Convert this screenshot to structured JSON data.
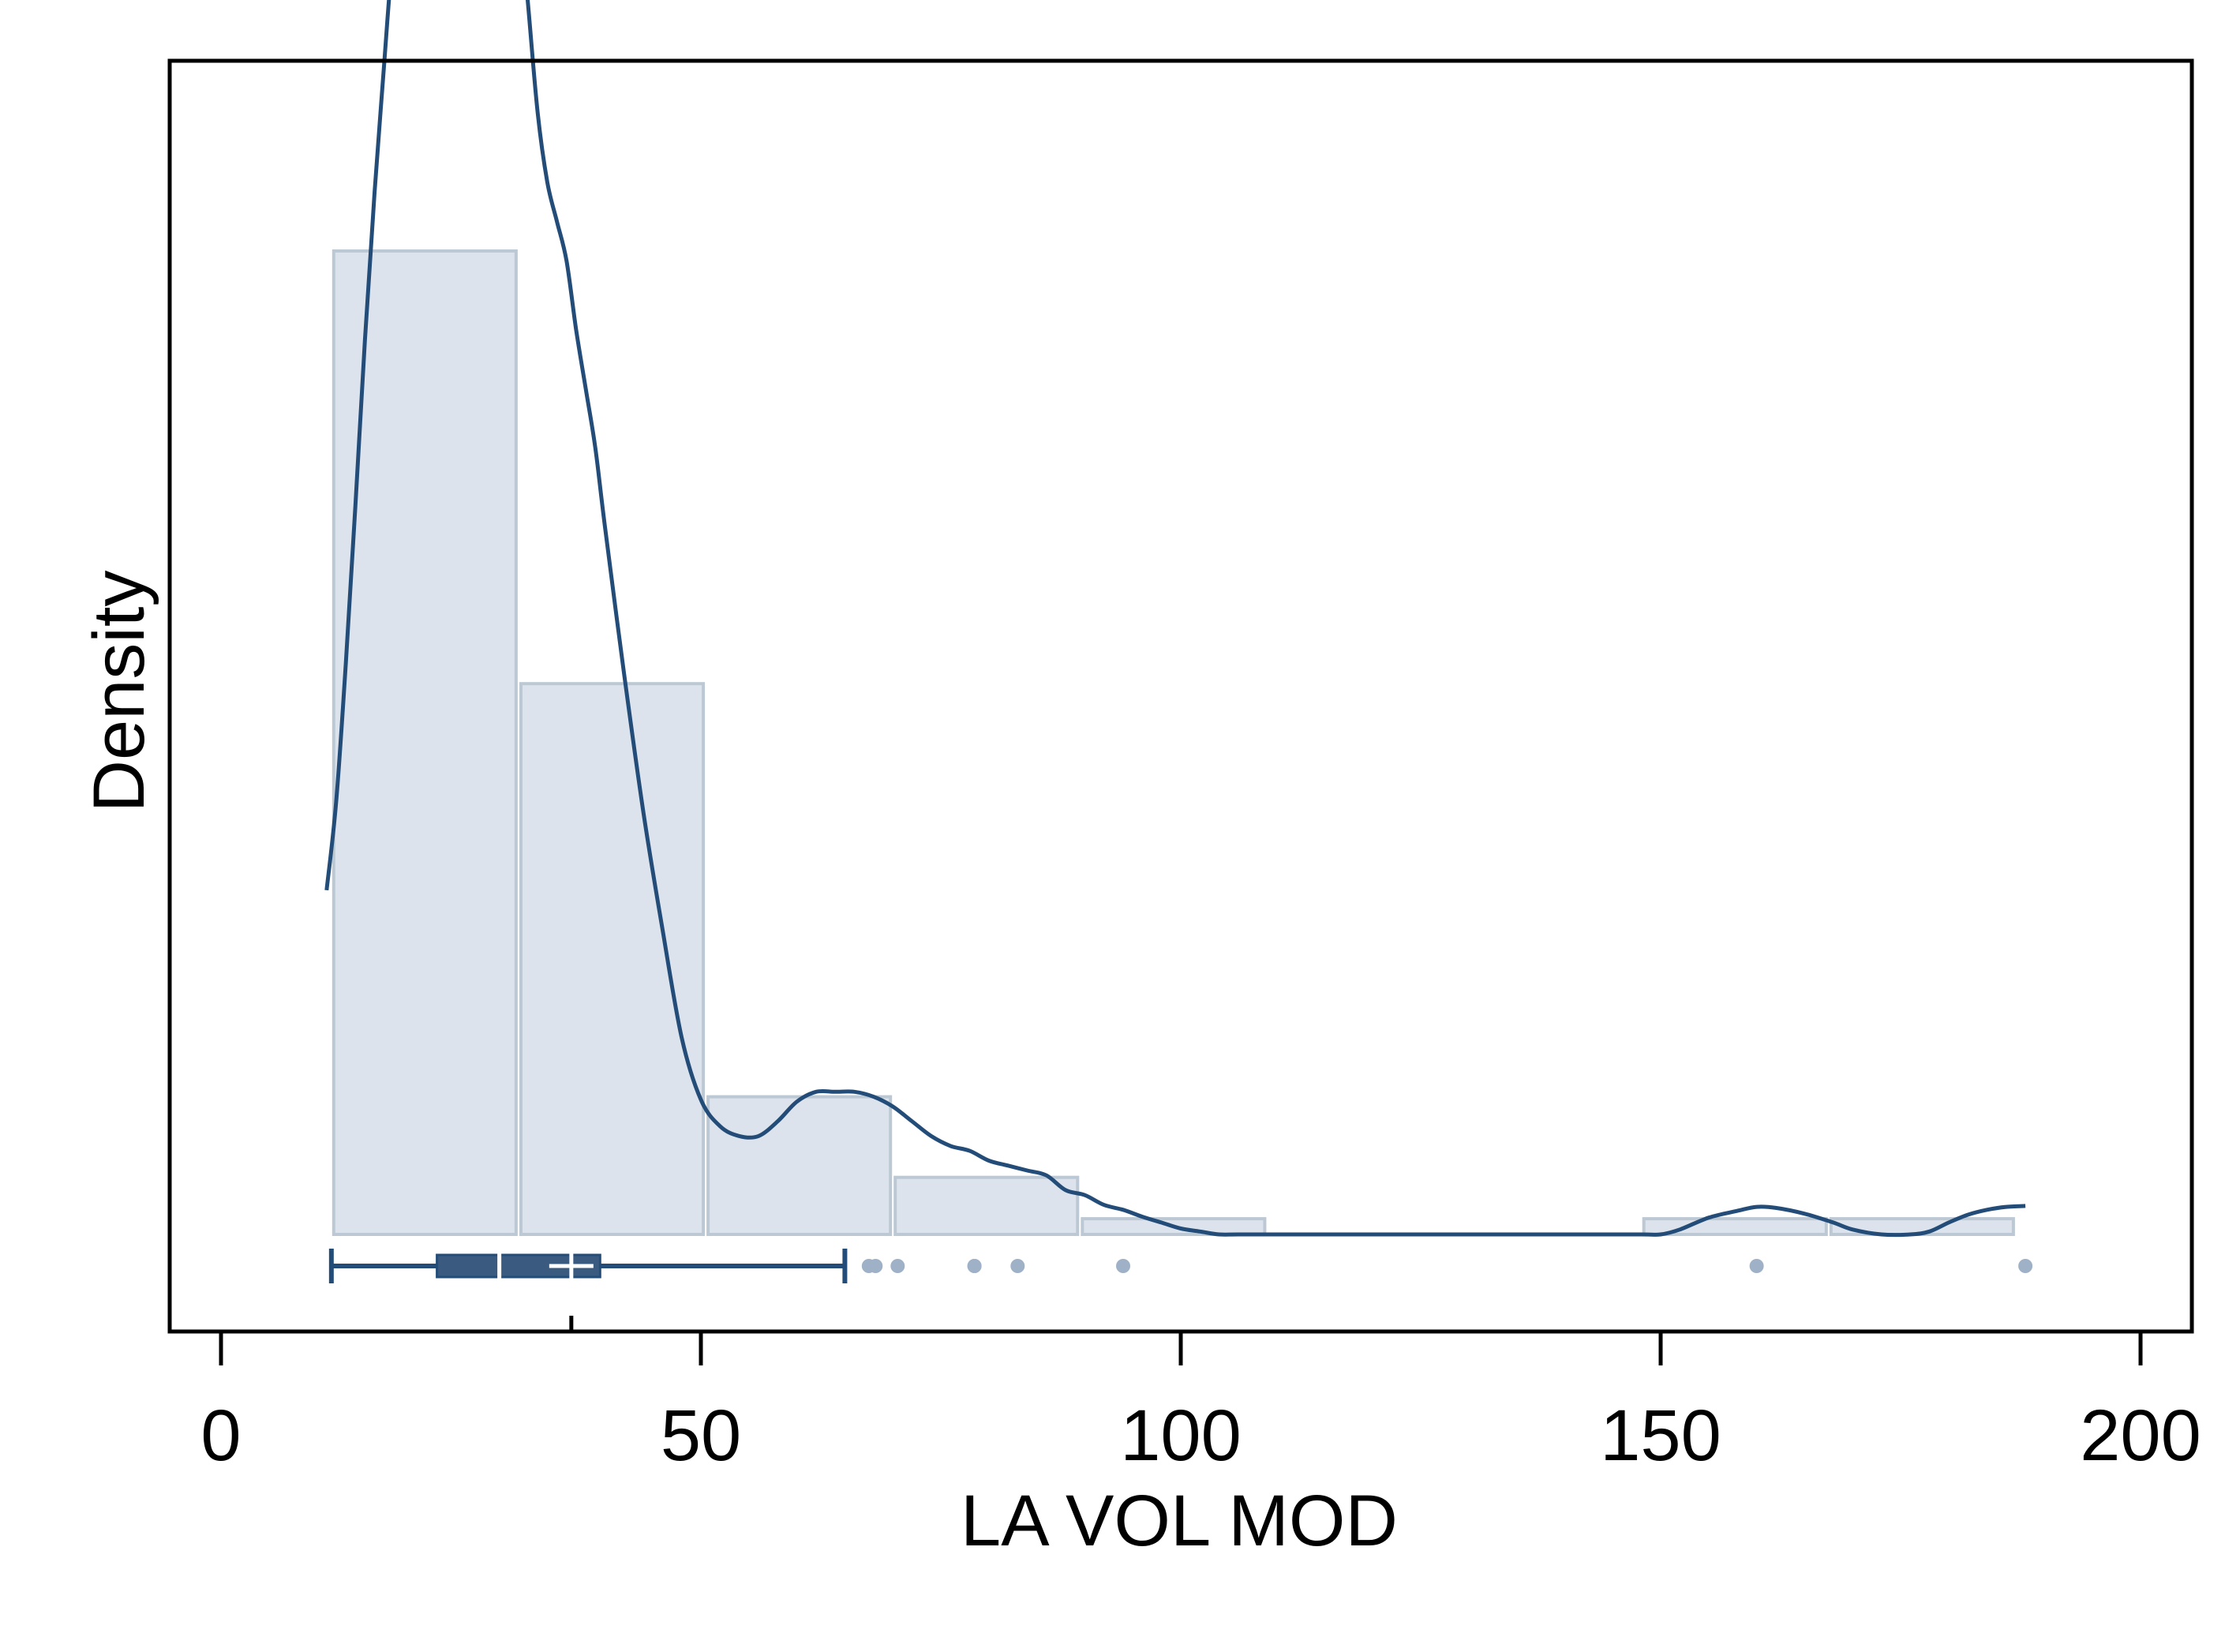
{
  "chart_data": {
    "type": "histogram",
    "xlabel": "LA VOL MOD",
    "ylabel": "Density",
    "xlim": [
      -5,
      206
    ],
    "x_ticks": [
      0,
      50,
      100,
      150,
      200
    ],
    "x_tick_labels": [
      "0",
      "50",
      "100",
      "150",
      "200"
    ],
    "y_ticks_shown": false,
    "grid": false,
    "legend": "none",
    "bin_edges": [
      11.5,
      31.0,
      50.5,
      70.0,
      89.5,
      109.0,
      128.5,
      148.0,
      167.5,
      187.0
    ],
    "bin_heights": [
      1.0,
      0.56,
      0.14,
      0.058,
      0.016,
      0,
      0,
      0.016,
      0.016
    ],
    "density_curve": {
      "x": [
        11,
        12,
        13,
        14,
        15,
        16,
        17,
        18,
        19,
        20,
        21,
        22,
        23,
        24,
        25,
        26,
        27,
        28,
        29,
        30,
        31,
        32,
        33,
        34,
        35,
        36,
        37,
        38,
        39,
        40,
        42,
        44,
        46,
        48,
        50,
        52,
        54,
        56,
        58,
        60,
        62,
        64,
        66,
        68,
        70,
        72,
        74,
        76,
        78,
        80,
        82,
        84,
        86,
        88,
        90,
        92,
        94,
        96,
        98,
        100,
        102,
        104,
        106,
        110,
        120,
        130,
        140,
        148,
        150,
        152,
        155,
        158,
        160,
        162,
        165,
        168,
        170,
        173,
        176,
        178,
        180,
        182,
        184,
        186,
        188
      ],
      "y": [
        0.35,
        0.44,
        0.58,
        0.74,
        0.91,
        1.06,
        1.19,
        1.32,
        1.42,
        1.52,
        1.59,
        1.63,
        1.637,
        1.62,
        1.59,
        1.56,
        1.53,
        1.51,
        1.48,
        1.43,
        1.36,
        1.25,
        1.14,
        1.07,
        1.03,
        0.99,
        0.92,
        0.86,
        0.8,
        0.72,
        0.57,
        0.43,
        0.31,
        0.2,
        0.137,
        0.11,
        0.1,
        0.1,
        0.115,
        0.135,
        0.145,
        0.145,
        0.145,
        0.14,
        0.13,
        0.115,
        0.1,
        0.09,
        0.085,
        0.075,
        0.07,
        0.065,
        0.06,
        0.045,
        0.04,
        0.03,
        0.025,
        0.018,
        0.012,
        0.006,
        0.003,
        0,
        0,
        0,
        0,
        0,
        0,
        0,
        0,
        0.005,
        0.017,
        0.024,
        0.028,
        0.027,
        0.021,
        0.012,
        0.005,
        0,
        0,
        0.003,
        0.012,
        0.02,
        0.025,
        0.028,
        0.029
      ]
    },
    "boxplot": {
      "min": 11.5,
      "q1": 22.5,
      "median": 29,
      "mean": 36.5,
      "q3": 39.5,
      "upper_whisker": 65,
      "outliers": [
        67.5,
        68.2,
        70.5,
        78.5,
        78.5,
        83,
        94,
        160,
        188
      ]
    },
    "colors": {
      "bar_fill": "#dce3ec",
      "bar_stroke": "#bcc8d4",
      "curve": "#234d78",
      "box": "#3a5b7f",
      "outlier": "#9fb1c6",
      "frame": "#000000"
    }
  }
}
